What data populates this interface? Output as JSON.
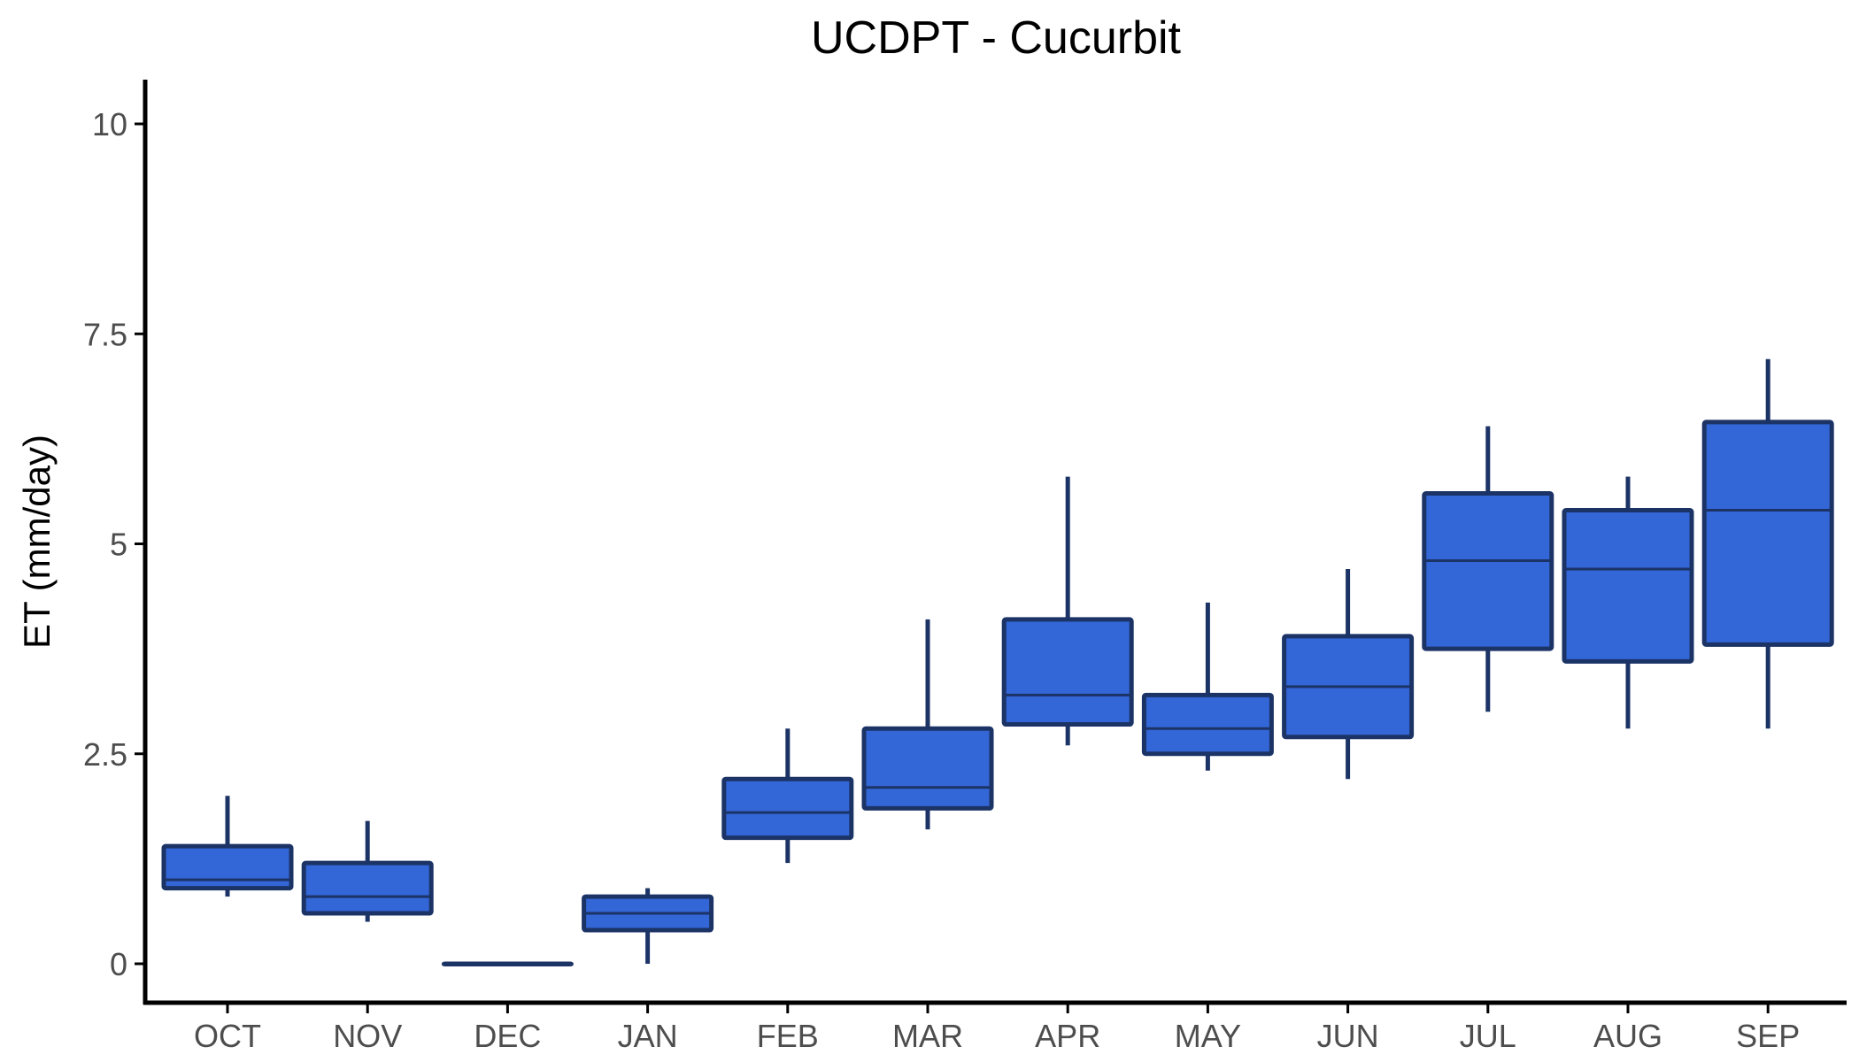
{
  "chart_data": {
    "type": "boxplot",
    "title": "UCDPT - Cucurbit",
    "xlabel": "",
    "ylabel": "ET (mm/day)",
    "ylim": [
      -0.5,
      10.5
    ],
    "yticks": [
      0,
      2.5,
      5,
      7.5,
      10
    ],
    "ytick_labels": [
      "0",
      "2.5",
      "5",
      "7.5",
      "10"
    ],
    "grid": false,
    "legend": "none",
    "colors": {
      "box_fill": "#3366d6",
      "box_stroke": "#1c3366",
      "axis": "#000000",
      "tick_text": "#4d4d4d"
    },
    "categories": [
      "OCT",
      "NOV",
      "DEC",
      "JAN",
      "FEB",
      "MAR",
      "APR",
      "MAY",
      "JUN",
      "JUL",
      "AUG",
      "SEP"
    ],
    "boxes": [
      {
        "min": 0.8,
        "q1": 0.9,
        "median": 1.0,
        "q3": 1.4,
        "max": 2.0
      },
      {
        "min": 0.5,
        "q1": 0.6,
        "median": 0.8,
        "q3": 1.2,
        "max": 1.7
      },
      {
        "min": 0.0,
        "q1": 0.0,
        "median": 0.0,
        "q3": 0.0,
        "max": 0.0
      },
      {
        "min": 0.0,
        "q1": 0.4,
        "median": 0.6,
        "q3": 0.8,
        "max": 0.9
      },
      {
        "min": 1.2,
        "q1": 1.5,
        "median": 1.8,
        "q3": 2.2,
        "max": 2.8
      },
      {
        "min": 1.6,
        "q1": 1.85,
        "median": 2.1,
        "q3": 2.8,
        "max": 4.1
      },
      {
        "min": 2.6,
        "q1": 2.85,
        "median": 3.2,
        "q3": 4.1,
        "max": 5.8
      },
      {
        "min": 2.3,
        "q1": 2.5,
        "median": 2.8,
        "q3": 3.2,
        "max": 4.3
      },
      {
        "min": 2.2,
        "q1": 2.7,
        "median": 3.3,
        "q3": 3.9,
        "max": 4.7
      },
      {
        "min": 3.0,
        "q1": 3.75,
        "median": 4.8,
        "q3": 5.6,
        "max": 6.4
      },
      {
        "min": 2.8,
        "q1": 3.6,
        "median": 4.7,
        "q3": 5.4,
        "max": 5.8
      },
      {
        "min": 2.8,
        "q1": 3.8,
        "median": 5.4,
        "q3": 6.45,
        "max": 7.2
      }
    ]
  }
}
